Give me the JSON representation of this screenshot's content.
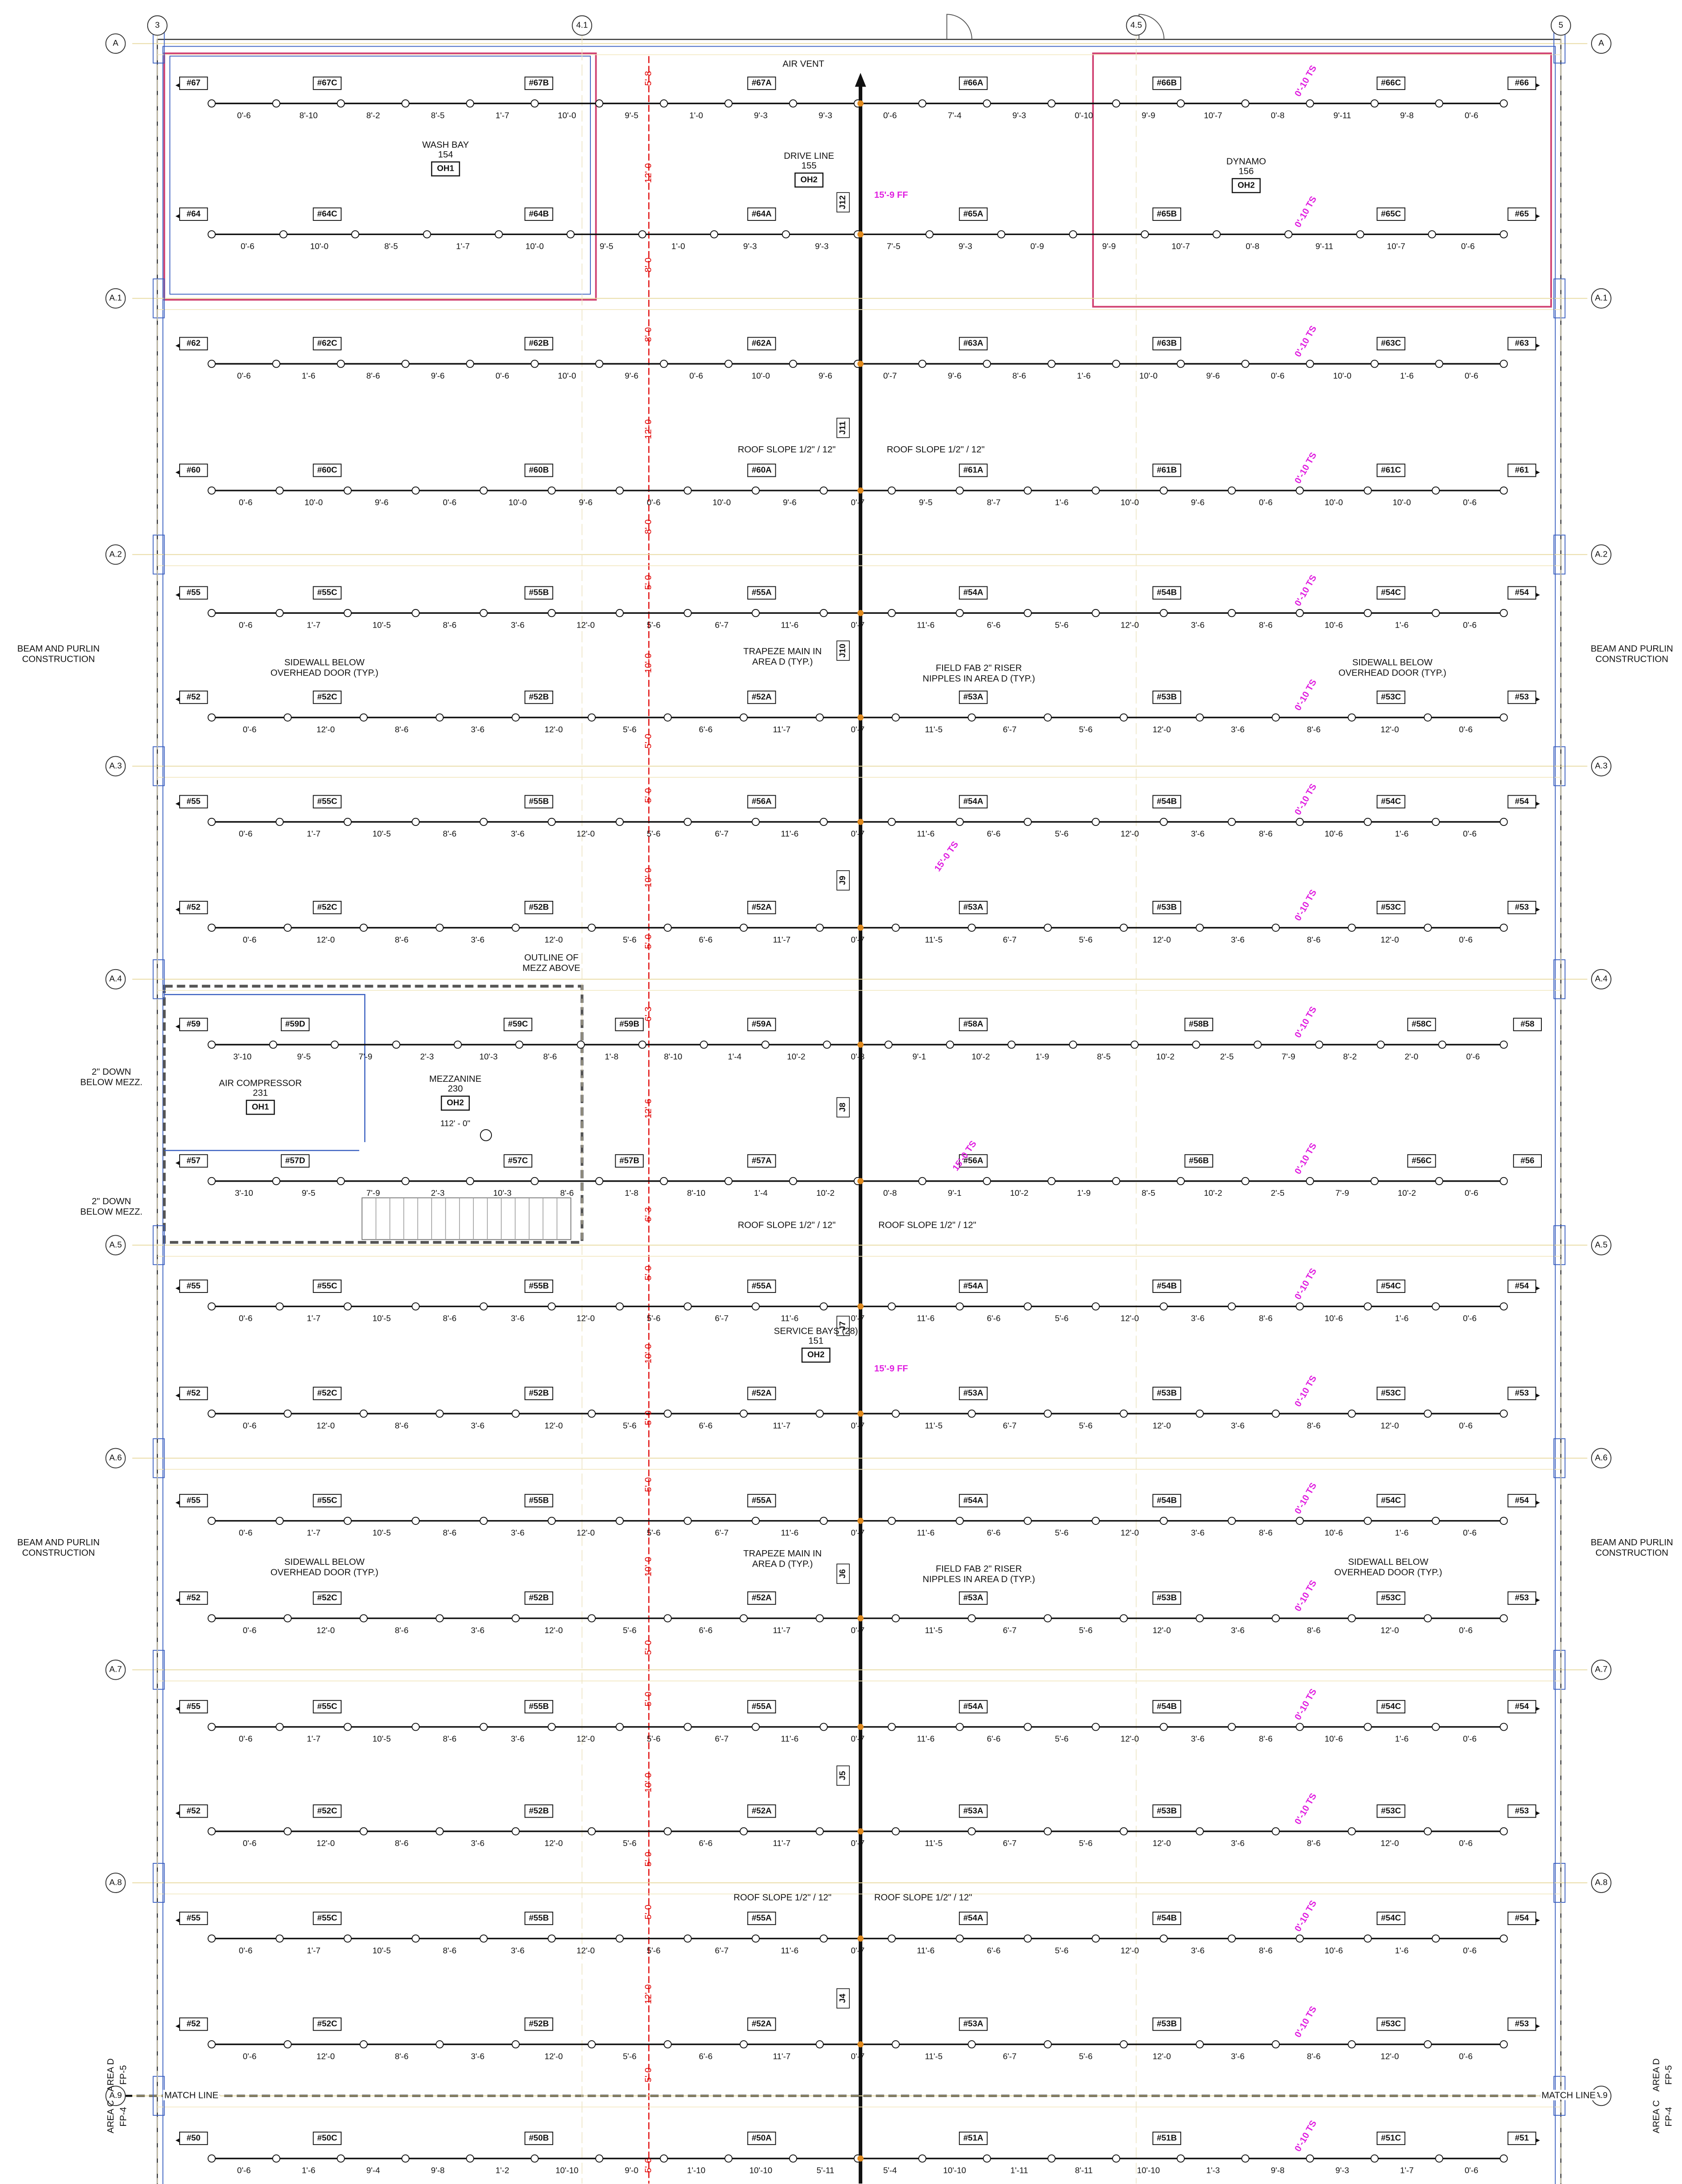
{
  "grid_bubbles": {
    "left": [
      "A",
      "A.1",
      "A.2",
      "A.3",
      "A.4",
      "A.5",
      "A.6",
      "A.7",
      "A.8",
      "A.9"
    ],
    "right": [
      "A",
      "A.1",
      "A.2",
      "A.3",
      "A.4",
      "A.5",
      "A.6",
      "A.7",
      "A.8",
      "A.9"
    ],
    "top": [
      "3",
      "4.1",
      "4.5",
      "5"
    ]
  },
  "branch_lines": [
    {
      "labels": [
        "#67",
        "#67C",
        "#67B",
        "#67A",
        "#66A",
        "#66B",
        "#66C",
        "#66"
      ],
      "dims": [
        "0'-6",
        "8'-10",
        "8'-2",
        "8'-5",
        "1'-7",
        "10'-0",
        "9'-5",
        "1'-0",
        "9'-3",
        "9'-3",
        "0'-6",
        "7'-4",
        "9'-3",
        "0'-10",
        "9'-9",
        "10'-7",
        "0'-8",
        "9'-11",
        "9'-8",
        "0'-6"
      ]
    },
    {
      "labels": [
        "#64",
        "#64C",
        "#64B",
        "#64A",
        "#65A",
        "#65B",
        "#65C",
        "#65"
      ],
      "dims": [
        "0'-6",
        "10'-0",
        "8'-5",
        "1'-7",
        "10'-0",
        "9'-5",
        "1'-0",
        "9'-3",
        "9'-3",
        "7'-5",
        "9'-3",
        "0'-9",
        "9'-9",
        "10'-7",
        "0'-8",
        "9'-11",
        "10'-7",
        "0'-6"
      ]
    },
    {
      "labels": [
        "#62",
        "#62C",
        "#62B",
        "#62A",
        "#63A",
        "#63B",
        "#63C",
        "#63"
      ],
      "dims": [
        "0'-6",
        "1'-6",
        "8'-6",
        "9'-6",
        "0'-6",
        "10'-0",
        "9'-6",
        "0'-6",
        "10'-0",
        "9'-6",
        "0'-7",
        "9'-6",
        "8'-6",
        "1'-6",
        "10'-0",
        "9'-6",
        "0'-6",
        "10'-0",
        "1'-6",
        "0'-6"
      ]
    },
    {
      "labels": [
        "#60",
        "#60C",
        "#60B",
        "#60A",
        "#61A",
        "#61B",
        "#61C",
        "#61"
      ],
      "dims": [
        "0'-6",
        "10'-0",
        "9'-6",
        "0'-6",
        "10'-0",
        "9'-6",
        "0'-6",
        "10'-0",
        "9'-6",
        "0'-7",
        "9'-5",
        "8'-7",
        "1'-6",
        "10'-0",
        "9'-6",
        "0'-6",
        "10'-0",
        "10'-0",
        "0'-6"
      ]
    },
    {
      "labels": [
        "#55",
        "#55C",
        "#55B",
        "#55A",
        "#54A",
        "#54B",
        "#54C",
        "#54"
      ],
      "dims": [
        "0'-6",
        "1'-7",
        "10'-5",
        "8'-6",
        "3'-6",
        "12'-0",
        "5'-6",
        "6'-7",
        "11'-6",
        "0'-7",
        "11'-6",
        "6'-6",
        "5'-6",
        "12'-0",
        "3'-6",
        "8'-6",
        "10'-6",
        "1'-6",
        "0'-6"
      ]
    },
    {
      "labels": [
        "#52",
        "#52C",
        "#52B",
        "#52A",
        "#53A",
        "#53B",
        "#53C",
        "#53"
      ],
      "dims": [
        "0'-6",
        "12'-0",
        "8'-6",
        "3'-6",
        "12'-0",
        "5'-6",
        "6'-6",
        "11'-7",
        "0'-7",
        "11'-5",
        "6'-7",
        "5'-6",
        "12'-0",
        "3'-6",
        "8'-6",
        "12'-0",
        "0'-6"
      ]
    },
    {
      "labels": [
        "#55",
        "#55C",
        "#55B",
        "#56A",
        "#54A",
        "#54B",
        "#54C",
        "#54"
      ],
      "dims": [
        "0'-6",
        "1'-7",
        "10'-5",
        "8'-6",
        "3'-6",
        "12'-0",
        "5'-6",
        "6'-7",
        "11'-6",
        "0'-7",
        "11'-6",
        "6'-6",
        "5'-6",
        "12'-0",
        "3'-6",
        "8'-6",
        "10'-6",
        "1'-6",
        "0'-6"
      ]
    },
    {
      "labels": [
        "#52",
        "#52C",
        "#52B",
        "#52A",
        "#53A",
        "#53B",
        "#53C",
        "#53"
      ],
      "dims": [
        "0'-6",
        "12'-0",
        "8'-6",
        "3'-6",
        "12'-0",
        "5'-6",
        "6'-6",
        "11'-7",
        "0'-7",
        "11'-5",
        "6'-7",
        "5'-6",
        "12'-0",
        "3'-6",
        "8'-6",
        "12'-0",
        "0'-6"
      ]
    },
    {
      "labels": [
        "#59",
        "#59D",
        "#59C",
        "#59B",
        "#59A",
        "#58A",
        "#58B",
        "#58C",
        "#58"
      ],
      "dims": [
        "3'-10",
        "9'-5",
        "7'-9",
        "2'-3",
        "10'-3",
        "8'-6",
        "1'-8",
        "8'-10",
        "1'-4",
        "10'-2",
        "0'-8",
        "9'-1",
        "10'-2",
        "1'-9",
        "8'-5",
        "10'-2",
        "2'-5",
        "7'-9",
        "8'-2",
        "2'-0",
        "0'-6"
      ]
    },
    {
      "labels": [
        "#57",
        "#57D",
        "#57C",
        "#57B",
        "#57A",
        "#56A",
        "#56B",
        "#56C",
        "#56"
      ],
      "dims": [
        "3'-10",
        "9'-5",
        "7'-9",
        "2'-3",
        "10'-3",
        "8'-6",
        "1'-8",
        "8'-10",
        "1'-4",
        "10'-2",
        "0'-8",
        "9'-1",
        "10'-2",
        "1'-9",
        "8'-5",
        "10'-2",
        "2'-5",
        "7'-9",
        "10'-2",
        "0'-6"
      ]
    },
    {
      "labels": [
        "#55",
        "#55C",
        "#55B",
        "#55A",
        "#54A",
        "#54B",
        "#54C",
        "#54"
      ],
      "dims": [
        "0'-6",
        "1'-7",
        "10'-5",
        "8'-6",
        "3'-6",
        "12'-0",
        "5'-6",
        "6'-7",
        "11'-6",
        "0'-7",
        "11'-6",
        "6'-6",
        "5'-6",
        "12'-0",
        "3'-6",
        "8'-6",
        "10'-6",
        "1'-6",
        "0'-6"
      ]
    },
    {
      "labels": [
        "#52",
        "#52C",
        "#52B",
        "#52A",
        "#53A",
        "#53B",
        "#53C",
        "#53"
      ],
      "dims": [
        "0'-6",
        "12'-0",
        "8'-6",
        "3'-6",
        "12'-0",
        "5'-6",
        "6'-6",
        "11'-7",
        "0'-7",
        "11'-5",
        "6'-7",
        "5'-6",
        "12'-0",
        "3'-6",
        "8'-6",
        "12'-0",
        "0'-6"
      ]
    },
    {
      "labels": [
        "#55",
        "#55C",
        "#55B",
        "#55A",
        "#54A",
        "#54B",
        "#54C",
        "#54"
      ],
      "dims": [
        "0'-6",
        "1'-7",
        "10'-5",
        "8'-6",
        "3'-6",
        "12'-0",
        "5'-6",
        "6'-7",
        "11'-6",
        "0'-7",
        "11'-6",
        "6'-6",
        "5'-6",
        "12'-0",
        "3'-6",
        "8'-6",
        "10'-6",
        "1'-6",
        "0'-6"
      ]
    },
    {
      "labels": [
        "#52",
        "#52C",
        "#52B",
        "#52A",
        "#53A",
        "#53B",
        "#53C",
        "#53"
      ],
      "dims": [
        "0'-6",
        "12'-0",
        "8'-6",
        "3'-6",
        "12'-0",
        "5'-6",
        "6'-6",
        "11'-7",
        "0'-7",
        "11'-5",
        "6'-7",
        "5'-6",
        "12'-0",
        "3'-6",
        "8'-6",
        "12'-0",
        "0'-6"
      ]
    },
    {
      "labels": [
        "#55",
        "#55C",
        "#55B",
        "#55A",
        "#54A",
        "#54B",
        "#54C",
        "#54"
      ],
      "dims": [
        "0'-6",
        "1'-7",
        "10'-5",
        "8'-6",
        "3'-6",
        "12'-0",
        "5'-6",
        "6'-7",
        "11'-6",
        "0'-7",
        "11'-6",
        "6'-6",
        "5'-6",
        "12'-0",
        "3'-6",
        "8'-6",
        "10'-6",
        "1'-6",
        "0'-6"
      ]
    },
    {
      "labels": [
        "#52",
        "#52C",
        "#52B",
        "#52A",
        "#53A",
        "#53B",
        "#53C",
        "#53"
      ],
      "dims": [
        "0'-6",
        "12'-0",
        "8'-6",
        "3'-6",
        "12'-0",
        "5'-6",
        "6'-6",
        "11'-7",
        "0'-7",
        "11'-5",
        "6'-7",
        "5'-6",
        "12'-0",
        "3'-6",
        "8'-6",
        "12'-0",
        "0'-6"
      ]
    },
    {
      "labels": [
        "#55",
        "#55C",
        "#55B",
        "#55A",
        "#54A",
        "#54B",
        "#54C",
        "#54"
      ],
      "dims": [
        "0'-6",
        "1'-7",
        "10'-5",
        "8'-6",
        "3'-6",
        "12'-0",
        "5'-6",
        "6'-7",
        "11'-6",
        "0'-7",
        "11'-6",
        "6'-6",
        "5'-6",
        "12'-0",
        "3'-6",
        "8'-6",
        "10'-6",
        "1'-6",
        "0'-6"
      ]
    },
    {
      "labels": [
        "#52",
        "#52C",
        "#52B",
        "#52A",
        "#53A",
        "#53B",
        "#53C",
        "#53"
      ],
      "dims": [
        "0'-6",
        "12'-0",
        "8'-6",
        "3'-6",
        "12'-0",
        "5'-6",
        "6'-6",
        "11'-7",
        "0'-7",
        "11'-5",
        "6'-7",
        "5'-6",
        "12'-0",
        "3'-6",
        "8'-6",
        "12'-0",
        "0'-6"
      ]
    },
    {
      "labels": [
        "#50",
        "#50C",
        "#50B",
        "#50A",
        "#51A",
        "#51B",
        "#51C",
        "#51"
      ],
      "dims": [
        "0'-6",
        "1'-6",
        "9'-4",
        "9'-8",
        "1'-2",
        "10'-10",
        "9'-0",
        "1'-10",
        "10'-10",
        "5'-11",
        "5'-4",
        "10'-10",
        "1'-11",
        "8'-11",
        "10'-10",
        "1'-3",
        "9'-8",
        "9'-3",
        "1'-7",
        "0'-6"
      ]
    }
  ],
  "rooms": [
    {
      "name": "WASH BAY",
      "number": "154",
      "hazard": "OH1"
    },
    {
      "name": "DRIVE LINE",
      "number": "155",
      "hazard": "OH2"
    },
    {
      "name": "DYNAMO",
      "number": "156",
      "hazard": "OH2"
    },
    {
      "name": "AIR COMPRESSOR",
      "number": "231",
      "hazard": "OH1"
    },
    {
      "name": "MEZZANINE",
      "number": "230",
      "hazard": "OH2",
      "elevation": "112' - 0\""
    },
    {
      "name": "SERVICE BAYS (28)",
      "number": "151",
      "hazard": "OH2"
    }
  ],
  "notes": [
    {
      "lines": [
        "AIR VENT"
      ]
    },
    {
      "lines": [
        "ROOF SLOPE 1/2\" / 12\""
      ]
    },
    {
      "lines": [
        "ROOF SLOPE 1/2\" / 12\""
      ]
    },
    {
      "lines": [
        "ROOF SLOPE 1/2\" / 12\""
      ]
    },
    {
      "lines": [
        "ROOF SLOPE 1/2\" / 12\""
      ]
    },
    {
      "lines": [
        "ROOF SLOPE 1/2\" / 12\""
      ]
    },
    {
      "lines": [
        "ROOF SLOPE 1/2\" / 12\""
      ]
    },
    {
      "lines": [
        "TRAPEZE MAIN IN",
        "AREA D (TYP.)"
      ]
    },
    {
      "lines": [
        "TRAPEZE MAIN IN",
        "AREA D (TYP.)"
      ]
    },
    {
      "lines": [
        "FIELD FAB 2\" RISER",
        "NIPPLES IN AREA D (TYP.)"
      ]
    },
    {
      "lines": [
        "FIELD FAB 2\" RISER",
        "NIPPLES IN AREA D (TYP.)"
      ]
    },
    {
      "lines": [
        "SIDEWALL BELOW",
        "OVERHEAD DOOR (TYP.)"
      ]
    },
    {
      "lines": [
        "SIDEWALL BELOW",
        "OVERHEAD DOOR (TYP.)"
      ]
    },
    {
      "lines": [
        "SIDEWALL BELOW",
        "OVERHEAD DOOR (TYP.)"
      ]
    },
    {
      "lines": [
        "SIDEWALL BELOW",
        "OVERHEAD DOOR (TYP.)"
      ]
    },
    {
      "lines": [
        "BEAM AND PURLIN",
        "CONSTRUCTION"
      ]
    },
    {
      "lines": [
        "BEAM AND PURLIN",
        "CONSTRUCTION"
      ]
    },
    {
      "lines": [
        "BEAM AND PURLIN",
        "CONSTRUCTION"
      ]
    },
    {
      "lines": [
        "BEAM AND PURLIN",
        "CONSTRUCTION"
      ]
    },
    {
      "lines": [
        "OUTLINE OF",
        "MEZZ ABOVE"
      ]
    },
    {
      "lines": [
        "2\" DOWN",
        "BELOW MEZZ."
      ]
    },
    {
      "lines": [
        "2\" DOWN",
        "BELOW MEZZ."
      ]
    },
    {
      "lines": [
        "MATCH LINE"
      ]
    },
    {
      "lines": [
        "MATCH LINE"
      ]
    }
  ],
  "area_tags": [
    {
      "lines": [
        "AREA C",
        "FP-4"
      ]
    },
    {
      "lines": [
        "AREA D",
        "FP-5"
      ]
    },
    {
      "lines": [
        "AREA C",
        "FP-4"
      ]
    },
    {
      "lines": [
        "AREA D",
        "FP-5"
      ]
    }
  ],
  "main_labels": [
    "J12",
    "J11",
    "J10",
    "J9",
    "J8",
    "J7",
    "J6",
    "J5",
    "J4"
  ],
  "main_dims": [
    "5'-8",
    "12'-0",
    "8'-0",
    "8'-0",
    "12'-0",
    "8'-0",
    "5'-0",
    "10'-0",
    "5'-0",
    "5'-0",
    "10'-0",
    "5'-0",
    "6'-3",
    "12'-6",
    "6'-3",
    "5'-0",
    "10'-0",
    "5'-0",
    "5'-0",
    "10'-0",
    "5'-0",
    "5'-0",
    "10'-0",
    "5'-0",
    "5'-0",
    "12'-0",
    "5'-0",
    "5'-6"
  ],
  "elevation_tags": [
    "0'-10 TS",
    "0'-10 TS",
    "0'-10 TS",
    "0'-10 TS",
    "0'-10 TS",
    "0'-10 TS",
    "0'-10 TS",
    "0'-10 TS",
    "0'-10 TS",
    "0'-10 TS",
    "0'-10 TS",
    "0'-10 TS",
    "0'-10 TS",
    "0'-10 TS",
    "0'-10 TS",
    "0'-10 TS",
    "0'-10 TS",
    "0'-10 TS",
    "0'-10 TS",
    "15'-9 FF",
    "15'-9 FF",
    "15'-0 TS",
    "15'-0 TS"
  ]
}
